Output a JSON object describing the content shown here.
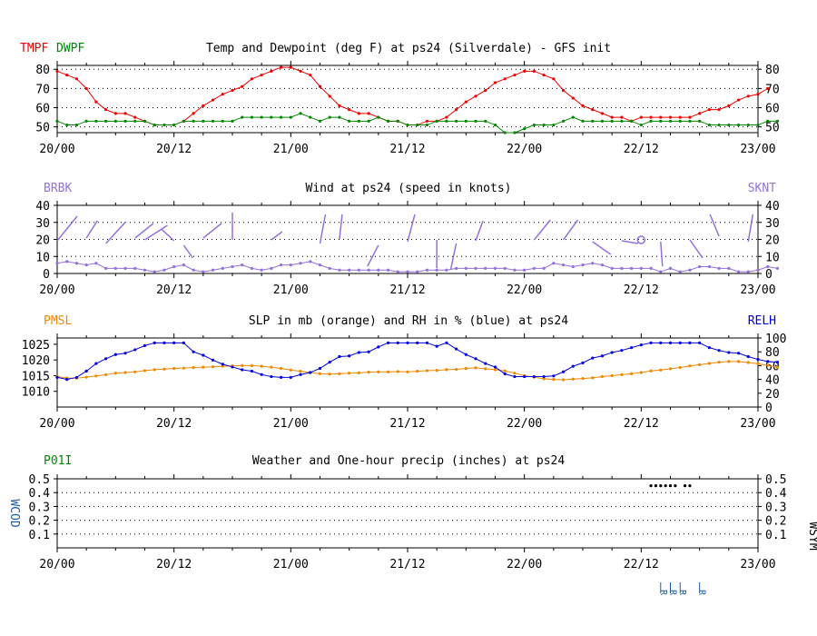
{
  "colors": {
    "temp": "#ee0000",
    "dewpoint": "#008800",
    "wind": "#9370db",
    "pressure": "#ee8800",
    "rh": "#0000dd",
    "precip": "#008800",
    "wcod": "#1e5aa0",
    "grid": "#000000",
    "axis": "#000000"
  },
  "x_tick_labels": [
    "20/00",
    "20/12",
    "21/00",
    "21/12",
    "22/00",
    "22/12",
    "23/00"
  ],
  "chart_data": [
    {
      "type": "line",
      "title": "Temp and Dewpoint (deg F) at ps24  (Silverdale) - GFS init",
      "left_codes": [
        {
          "text": "TMPF",
          "color": "temp"
        },
        {
          "text": "DWPF",
          "color": "dewpoint"
        }
      ],
      "right_code": null,
      "ylim": [
        47,
        82
      ],
      "yticks_left": [
        50,
        60,
        70,
        80
      ],
      "yticks_right": [
        50,
        60,
        70,
        80
      ],
      "grid": "dotted-horizontal",
      "x_range_hours": [
        0,
        72
      ],
      "series": [
        {
          "code": "TMPF",
          "color": "temp",
          "values": [
            79,
            77,
            75,
            70,
            63,
            59,
            57,
            57,
            55,
            53,
            51,
            51,
            51,
            53,
            57,
            61,
            64,
            67,
            69,
            71,
            75,
            77,
            79,
            81,
            81,
            79,
            77,
            71,
            66,
            61,
            59,
            57,
            57,
            55,
            53,
            53,
            51,
            51,
            53,
            53,
            55,
            59,
            63,
            66,
            69,
            73,
            75,
            77,
            79,
            79,
            77,
            75,
            69,
            65,
            61,
            59,
            57,
            55,
            55,
            53,
            55,
            55,
            55,
            55,
            55,
            55,
            57,
            59,
            59,
            61,
            64,
            66,
            67,
            70
          ]
        },
        {
          "code": "DWPF",
          "color": "dewpoint",
          "values": [
            53,
            51,
            51,
            53,
            53,
            53,
            53,
            53,
            53,
            53,
            51,
            51,
            51,
            53,
            53,
            53,
            53,
            53,
            53,
            55,
            55,
            55,
            55,
            55,
            55,
            57,
            55,
            53,
            55,
            55,
            53,
            53,
            53,
            55,
            53,
            53,
            51,
            51,
            51,
            53,
            53,
            53,
            53,
            53,
            53,
            51,
            47,
            47,
            49,
            51,
            51,
            51,
            53,
            55,
            53,
            53,
            53,
            53,
            53,
            53,
            51,
            53,
            53,
            53,
            53,
            53,
            53,
            51,
            51,
            51,
            51,
            51,
            51,
            53,
            53
          ]
        }
      ]
    },
    {
      "type": "line",
      "title": "Wind at  ps24  (speed in knots)",
      "left_codes": [
        {
          "text": "BRBK",
          "color": "wind"
        }
      ],
      "right_code": {
        "text": "SKNT",
        "color": "wind"
      },
      "ylim": [
        0,
        40
      ],
      "yticks_left": [
        0,
        10,
        20,
        30,
        40
      ],
      "yticks_right": [
        0,
        10,
        20,
        30,
        40
      ],
      "grid": "dotted-horizontal",
      "x_range_hours": [
        0,
        72
      ],
      "series": [
        {
          "code": "SKNT",
          "color": "wind",
          "values": [
            6,
            7,
            6,
            5,
            6,
            3,
            3,
            3,
            3,
            2,
            1,
            2,
            4,
            5,
            2,
            1,
            2,
            3,
            4,
            5,
            3,
            2,
            3,
            5,
            5,
            6,
            7,
            5,
            3,
            2,
            2,
            2,
            2,
            2,
            2,
            1,
            1,
            1,
            2,
            2,
            2,
            3,
            3,
            3,
            3,
            3,
            3,
            2,
            2,
            3,
            3,
            6,
            5,
            4,
            5,
            6,
            5,
            3,
            3,
            3,
            3,
            3,
            1,
            3,
            1,
            2,
            4,
            4,
            3,
            3,
            1,
            1,
            2,
            4,
            3
          ]
        }
      ]
    },
    {
      "type": "line",
      "title": "SLP in mb (orange) and RH in % (blue) at  ps24",
      "left_codes": [
        {
          "text": "PMSL",
          "color": "pressure"
        }
      ],
      "right_code": {
        "text": "RELH",
        "color": "rh"
      },
      "ylim_left": [
        1005,
        1027
      ],
      "yticks_left": [
        1010,
        1015,
        1020,
        1025
      ],
      "ylim_right": [
        0,
        100
      ],
      "yticks_right": [
        0,
        20,
        40,
        60,
        80,
        100
      ],
      "grid": "none",
      "x_range_hours": [
        0,
        72
      ],
      "series": [
        {
          "code": "PMSL",
          "color": "pressure",
          "axis": "left",
          "values": [
            1014.7,
            1014.2,
            1014.2,
            1014.5,
            1014.9,
            1015.3,
            1015.8,
            1016.0,
            1016.2,
            1016.6,
            1016.9,
            1017.1,
            1017.3,
            1017.4,
            1017.6,
            1017.7,
            1017.8,
            1018.0,
            1018.1,
            1018.2,
            1018.2,
            1018.0,
            1017.7,
            1017.3,
            1016.8,
            1016.4,
            1016.0,
            1015.6,
            1015.5,
            1015.6,
            1015.8,
            1015.9,
            1016.1,
            1016.2,
            1016.2,
            1016.3,
            1016.2,
            1016.4,
            1016.6,
            1016.7,
            1016.9,
            1017.0,
            1017.3,
            1017.5,
            1017.2,
            1016.9,
            1016.5,
            1015.8,
            1015.0,
            1014.5,
            1014.0,
            1013.8,
            1013.7,
            1013.9,
            1014.1,
            1014.3,
            1014.7,
            1015.0,
            1015.3,
            1015.6,
            1016.0,
            1016.5,
            1016.8,
            1017.2,
            1017.6,
            1018.1,
            1018.5,
            1018.9,
            1019.3,
            1019.5,
            1019.5,
            1019.2,
            1018.8,
            1018.3,
            1017.6
          ]
        },
        {
          "code": "RELH",
          "color": "rh",
          "axis": "right",
          "values": [
            43,
            40,
            43,
            52,
            63,
            70,
            76,
            78,
            83,
            89,
            93,
            93,
            93,
            93,
            80,
            75,
            68,
            62,
            58,
            54,
            52,
            47,
            44,
            43,
            43,
            47,
            50,
            56,
            65,
            73,
            74,
            79,
            80,
            87,
            93,
            93,
            93,
            93,
            93,
            88,
            93,
            84,
            76,
            70,
            63,
            58,
            48,
            44,
            44,
            44,
            44,
            45,
            51,
            59,
            64,
            71,
            74,
            79,
            82,
            86,
            90,
            93,
            93,
            93,
            93,
            93,
            93,
            86,
            82,
            79,
            78,
            73,
            69,
            66,
            65
          ]
        }
      ]
    },
    {
      "type": "scatter",
      "title": "Weather and One-hour precip (inches) at  ps24",
      "left_codes": [
        {
          "text": "P01I",
          "color": "precip"
        }
      ],
      "left_vertical_code": {
        "text": "WCOD",
        "color": "wcod"
      },
      "right_vertical_code": {
        "text": "WSYM",
        "color": "axis"
      },
      "ylim": [
        0,
        0.5
      ],
      "yticks_left": [
        "0.1",
        "0.2",
        "0.3",
        "0.4",
        "0.5"
      ],
      "yticks_right": [
        "0.1",
        "0.2",
        "0.3",
        "0.4",
        "0.5"
      ],
      "grid": "dotted-horizontal",
      "x_range_hours": [
        0,
        72
      ],
      "series": [
        {
          "code": "P01I",
          "color": "axis",
          "x_hours": [
            61,
            61.5,
            62,
            62.5,
            63,
            63.5,
            64.5,
            65
          ],
          "values": [
            0.45,
            0.45,
            0.45,
            0.45,
            0.45,
            0.45,
            0.45,
            0.45
          ]
        }
      ],
      "weather_code_marks": {
        "x_hours": [
          62,
          63,
          64,
          66
        ],
        "label": "R"
      }
    }
  ]
}
